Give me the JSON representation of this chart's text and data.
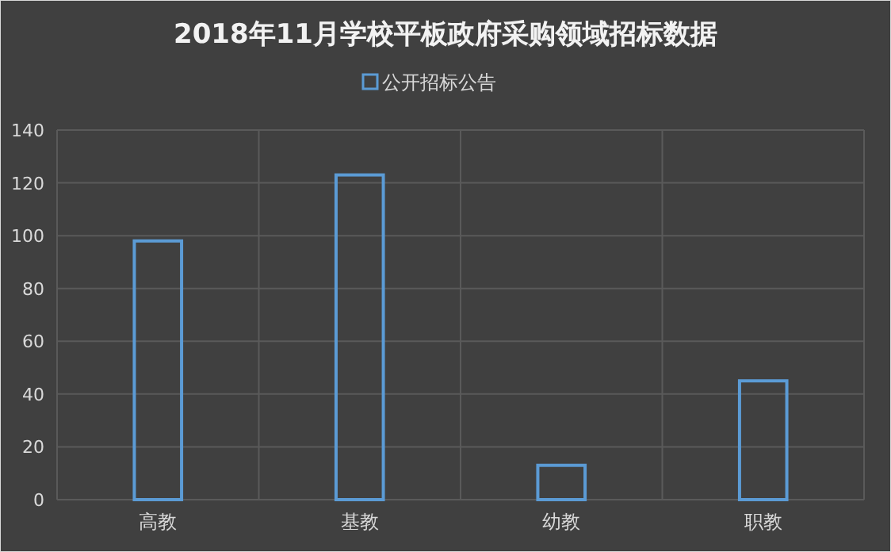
{
  "chart_data": {
    "type": "bar",
    "title": "2018年11月学校平板政府采购领域招标数据",
    "categories": [
      "高教",
      "基教",
      "幼教",
      "职教"
    ],
    "series": [
      {
        "name": "公开招标公告",
        "color": "#5b9bd5",
        "values": [
          98,
          123,
          13,
          45
        ]
      }
    ],
    "ylim": [
      0,
      140
    ],
    "yticks": [
      0,
      20,
      40,
      60,
      80,
      100,
      120,
      140
    ],
    "grid": true,
    "legend": "top"
  }
}
